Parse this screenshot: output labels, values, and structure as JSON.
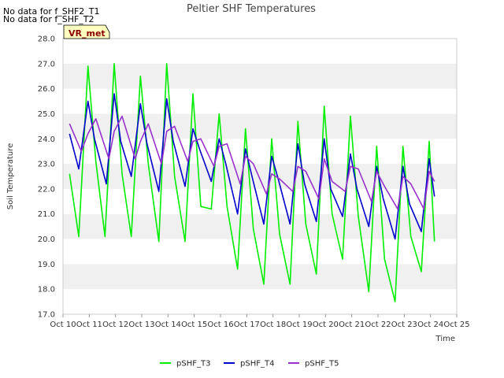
{
  "notices": [
    "No data for f_SHF2_T1",
    "No data for f_SHF_T2"
  ],
  "badge": "VR_met",
  "colors": {
    "pSHF_T3": "#00ee00",
    "pSHF_T4": "#0000cc",
    "pSHF_T5": "#9932cc",
    "band": "#f0f0f0",
    "badge_fill": "#ffffc0"
  },
  "chart_data": {
    "type": "line",
    "title": "Peltier SHF Temperatures",
    "xlabel": "Time",
    "ylabel": "Soil Temperature",
    "ylim": [
      17.0,
      28.0
    ],
    "yticks": [
      "17.0",
      "18.0",
      "19.0",
      "20.0",
      "21.0",
      "22.0",
      "23.0",
      "24.0",
      "25.0",
      "26.0",
      "27.0",
      "28.0"
    ],
    "xlim": [
      10,
      25
    ],
    "xticks": [
      "Oct 10",
      "Oct 11",
      "Oct 12",
      "Oct 13",
      "Oct 14",
      "Oct 15",
      "Oct 16",
      "Oct 17",
      "Oct 18",
      "Oct 19",
      "Oct 20",
      "Oct 21",
      "Oct 22",
      "Oct 23",
      "Oct 24",
      "Oct 25"
    ],
    "grid": "horizontal bands",
    "legend": "bottom",
    "series": [
      {
        "name": "pSHF_T3",
        "x": [
          10.25,
          10.6,
          10.95,
          11.25,
          11.6,
          11.95,
          12.25,
          12.6,
          12.95,
          13.25,
          13.65,
          13.95,
          14.25,
          14.65,
          14.95,
          15.25,
          15.65,
          15.95,
          16.25,
          16.65,
          16.95,
          17.25,
          17.65,
          17.95,
          18.25,
          18.65,
          18.95,
          19.25,
          19.65,
          19.95,
          20.25,
          20.65,
          20.95,
          21.25,
          21.65,
          21.95,
          22.25,
          22.65,
          22.95,
          23.25,
          23.65,
          23.95,
          24.15
        ],
        "values": [
          22.6,
          20.1,
          26.9,
          23.1,
          20.1,
          27.0,
          22.6,
          20.1,
          26.5,
          23.0,
          19.9,
          27.0,
          22.5,
          19.9,
          25.8,
          21.3,
          21.2,
          25.0,
          21.3,
          18.8,
          24.4,
          20.4,
          18.2,
          24.0,
          20.2,
          18.2,
          24.7,
          20.6,
          18.6,
          25.3,
          21.0,
          19.2,
          24.9,
          20.9,
          17.9,
          23.7,
          19.2,
          17.5,
          23.7,
          20.1,
          18.7,
          23.9,
          19.9
        ]
      },
      {
        "name": "pSHF_T4",
        "x": [
          10.25,
          10.6,
          10.95,
          11.2,
          11.65,
          11.95,
          12.2,
          12.6,
          12.95,
          13.2,
          13.65,
          13.95,
          14.2,
          14.65,
          14.95,
          15.2,
          15.65,
          15.95,
          16.2,
          16.65,
          16.95,
          17.2,
          17.65,
          17.95,
          18.2,
          18.65,
          18.95,
          19.2,
          19.65,
          19.95,
          20.2,
          20.65,
          20.95,
          21.2,
          21.65,
          21.95,
          22.2,
          22.65,
          22.95,
          23.2,
          23.65,
          23.95,
          24.15
        ],
        "values": [
          24.2,
          22.8,
          25.5,
          24.0,
          22.2,
          25.8,
          23.9,
          22.5,
          25.4,
          23.8,
          21.9,
          25.6,
          23.9,
          22.1,
          24.4,
          23.6,
          22.3,
          24.0,
          23.0,
          21.0,
          23.6,
          22.5,
          20.6,
          23.3,
          22.4,
          20.6,
          23.8,
          22.2,
          20.7,
          24.0,
          22.0,
          20.9,
          23.4,
          22.0,
          20.5,
          22.9,
          21.6,
          20.0,
          22.9,
          21.4,
          20.3,
          23.2,
          21.7
        ]
      },
      {
        "name": "pSHF_T5",
        "x": [
          10.25,
          10.7,
          10.95,
          11.25,
          11.75,
          11.95,
          12.25,
          12.75,
          12.95,
          13.25,
          13.75,
          13.95,
          14.25,
          14.75,
          14.95,
          15.25,
          15.75,
          15.95,
          16.25,
          16.75,
          16.95,
          17.25,
          17.75,
          17.95,
          18.25,
          18.75,
          18.95,
          19.25,
          19.75,
          19.95,
          20.25,
          20.75,
          20.95,
          21.25,
          21.75,
          21.95,
          22.25,
          22.75,
          22.95,
          23.25,
          23.75,
          23.95,
          24.15
        ],
        "values": [
          24.6,
          23.5,
          24.2,
          24.8,
          23.2,
          24.3,
          24.9,
          23.2,
          23.9,
          24.6,
          23.0,
          24.3,
          24.5,
          23.1,
          23.9,
          24.0,
          22.9,
          23.7,
          23.8,
          22.2,
          23.3,
          23.0,
          21.8,
          22.6,
          22.4,
          21.9,
          22.9,
          22.7,
          21.6,
          23.2,
          22.3,
          21.9,
          22.9,
          22.8,
          21.5,
          22.7,
          22.1,
          21.2,
          22.5,
          22.2,
          21.2,
          22.7,
          22.3
        ]
      }
    ]
  }
}
